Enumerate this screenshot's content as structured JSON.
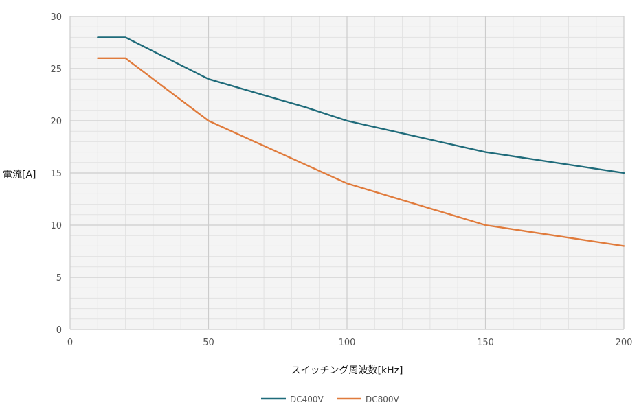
{
  "chart_data": {
    "type": "line",
    "xlabel": "スイッチング周波数[kHz]",
    "ylabel": "電流[A]",
    "xlim": [
      0,
      200
    ],
    "ylim": [
      0,
      30
    ],
    "x_ticks": [
      0,
      50,
      100,
      150,
      200
    ],
    "y_ticks": [
      0,
      5,
      10,
      15,
      20,
      25,
      30
    ],
    "grid": true,
    "legend_position": "bottom-center",
    "series": [
      {
        "name": "DC400V",
        "color": "#1f6b7a",
        "points": [
          [
            10,
            28
          ],
          [
            20,
            28
          ],
          [
            50,
            24
          ],
          [
            85,
            21.3
          ],
          [
            100,
            20
          ],
          [
            150,
            17
          ],
          [
            200,
            15
          ]
        ]
      },
      {
        "name": "DC800V",
        "color": "#e07b3c",
        "points": [
          [
            10,
            26
          ],
          [
            20,
            26
          ],
          [
            50,
            20
          ],
          [
            100,
            14
          ],
          [
            150,
            10
          ],
          [
            200,
            8
          ]
        ]
      }
    ]
  }
}
